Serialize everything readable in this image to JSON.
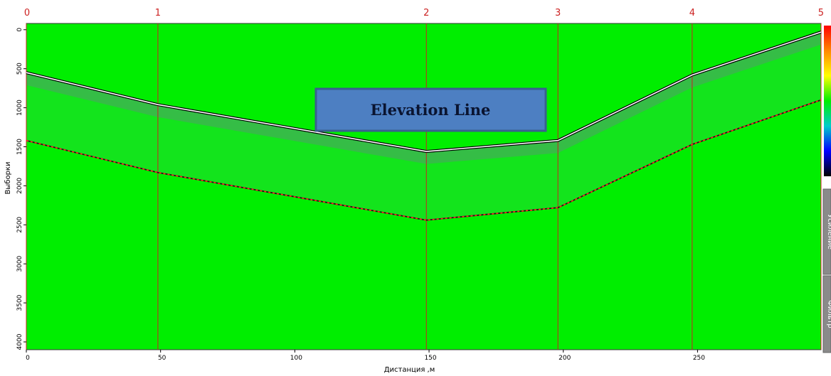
{
  "chart_data": {
    "type": "line",
    "xlabel": "Дистанция ,м",
    "ylabel": "Выборки",
    "xlim": [
      0,
      296
    ],
    "ylim": [
      4100,
      -80
    ],
    "x_ticks": [
      0,
      50,
      100,
      150,
      200,
      250
    ],
    "y_ticks": [
      0,
      500,
      1000,
      1500,
      2000,
      2500,
      3000,
      3500,
      4000
    ],
    "markers": [
      {
        "label": "0",
        "x": 0
      },
      {
        "label": "1",
        "x": 49
      },
      {
        "label": "2",
        "x": 149
      },
      {
        "label": "3",
        "x": 198
      },
      {
        "label": "4",
        "x": 248
      },
      {
        "label": "5",
        "x": 296
      }
    ],
    "series": [
      {
        "x": [
          0,
          49,
          149,
          198,
          248,
          296
        ],
        "values": [
          550,
          960,
          1560,
          1420,
          580,
          30
        ]
      },
      {
        "x": [
          0,
          49,
          149,
          198,
          248,
          296
        ],
        "values": [
          1420,
          1830,
          2440,
          2280,
          1470,
          900
        ]
      }
    ],
    "annotation": {
      "text": "Elevation Line"
    },
    "background_color": "#00ee00",
    "marker_line_color": "#cc2222",
    "marker_label_color": "#cc2222",
    "annotation_fill": "#4d7fc2",
    "annotation_border": "#3a5f8f",
    "colorbar_colors": [
      "#ff0000",
      "#ff8800",
      "#ffff00",
      "#00ee00",
      "#00cccc",
      "#0000ff",
      "#000000"
    ],
    "side_tabs": [
      {
        "label": "Усиление"
      },
      {
        "label": "Фильтр"
      }
    ]
  }
}
